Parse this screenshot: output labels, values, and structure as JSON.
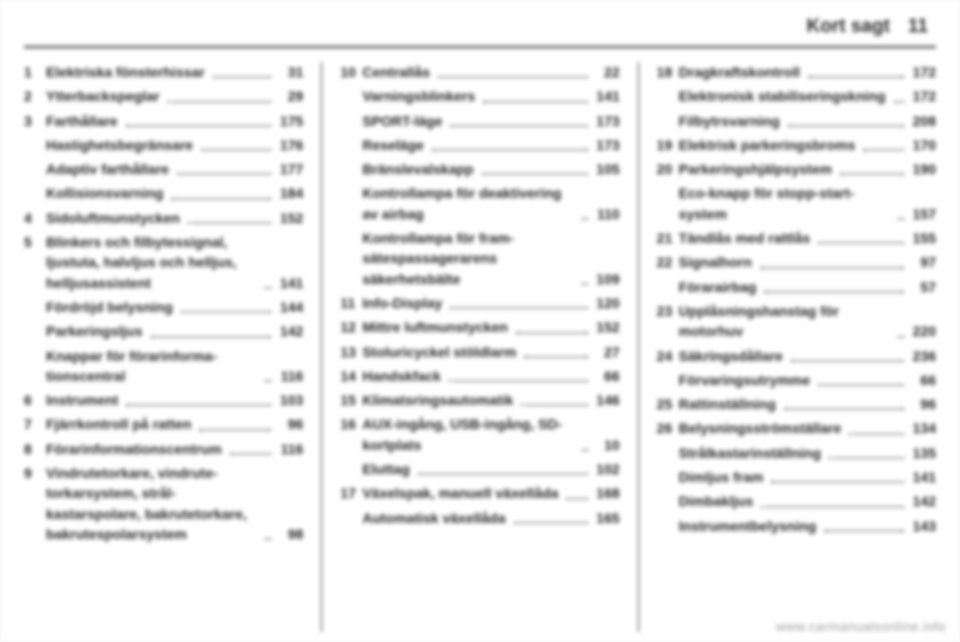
{
  "header": {
    "chapter": "Kort sagt",
    "page": "11"
  },
  "columns": [
    [
      {
        "idx": "1",
        "label": "Elektriska fönsterhissar",
        "pg": "31"
      },
      {
        "idx": "2",
        "label": "Ytterbackspeglar",
        "pg": "29"
      },
      {
        "idx": "3",
        "label": "Farthållare",
        "pg": "175"
      },
      {
        "idx": "",
        "label": "Hastighetsbegränsare",
        "pg": "176"
      },
      {
        "idx": "",
        "label": "Adaptiv farthållare",
        "pg": "177"
      },
      {
        "idx": "",
        "label": "Kollisionsvarning",
        "pg": "184"
      },
      {
        "idx": "4",
        "label": "Sidoluftmunstycken",
        "pg": "152"
      },
      {
        "idx": "5",
        "label": "Blinkers och filbytessignal, ljustuta, halvljus och helljus, helljusassistent",
        "pg": "141"
      },
      {
        "idx": "",
        "label": "Fördröjd belysning",
        "pg": "144"
      },
      {
        "idx": "",
        "label": "Parkeringsljus",
        "pg": "142"
      },
      {
        "idx": "",
        "label": "Knappar för förarinforma­tionscentral",
        "pg": "116"
      },
      {
        "idx": "6",
        "label": "Instrument",
        "pg": "103"
      },
      {
        "idx": "7",
        "label": "Fjärrkontroll på ratten",
        "pg": "96"
      },
      {
        "idx": "8",
        "label": "Förarinformationscentrum",
        "pg": "116"
      },
      {
        "idx": "9",
        "label": "Vindrutetorkare, vindrute­torkarsystem, strål­kastarspolare, bakrute­torkare, bakrute­spolarsystem",
        "pg": "98"
      }
    ],
    [
      {
        "idx": "10",
        "label": "Centrallås",
        "pg": "22"
      },
      {
        "idx": "",
        "label": "Varningsblinkers",
        "pg": "141"
      },
      {
        "idx": "",
        "label": "SPORT-läge",
        "pg": "173"
      },
      {
        "idx": "",
        "label": "Reseläge",
        "pg": "173"
      },
      {
        "idx": "",
        "label": "Bränslevalskapp",
        "pg": "105"
      },
      {
        "idx": "",
        "label": "Kontrollampa för deaktivering av airbag",
        "pg": "110"
      },
      {
        "idx": "",
        "label": "Kontrollampa för fram­sätespassagerarens säkerhetsbälte",
        "pg": "109"
      },
      {
        "idx": "11",
        "label": "Info-Display",
        "pg": "120"
      },
      {
        "idx": "12",
        "label": "Mittre luftmunstycken",
        "pg": "152"
      },
      {
        "idx": "13",
        "label": "Stoluricyckel stöldlarm",
        "pg": "27"
      },
      {
        "idx": "14",
        "label": "Handskfack",
        "pg": "66"
      },
      {
        "idx": "15",
        "label": "Klimatsringsautomatik",
        "pg": "146"
      },
      {
        "idx": "16",
        "label": "AUX-ingång, USB-ingång, SD-kortplats",
        "pg": "10"
      },
      {
        "idx": "",
        "label": "Eluttag",
        "pg": "102"
      },
      {
        "idx": "17",
        "label": "Växelspak, manuell växellåda",
        "pg": "168"
      },
      {
        "idx": "",
        "label": "Automatisk växellåda",
        "pg": "165"
      }
    ],
    [
      {
        "idx": "18",
        "label": "Dragkraftskontroll",
        "pg": "172"
      },
      {
        "idx": "",
        "label": "Elektronisk stabiliserings­kning",
        "pg": "172"
      },
      {
        "idx": "",
        "label": "Filbytrsvarning",
        "pg": "208"
      },
      {
        "idx": "19",
        "label": "Elektrisk parkeringsbroms",
        "pg": "170"
      },
      {
        "idx": "20",
        "label": "Parkeringshjälpsystem",
        "pg": "190"
      },
      {
        "idx": "",
        "label": "Eco-knapp för stopp-start-system",
        "pg": "157"
      },
      {
        "idx": "21",
        "label": "Tändlås med rattlås",
        "pg": "155"
      },
      {
        "idx": "22",
        "label": "Signalhorn",
        "pg": "97"
      },
      {
        "idx": "",
        "label": "Förarairbag",
        "pg": "57"
      },
      {
        "idx": "23",
        "label": "Upplåsningshanstag för motorhuv",
        "pg": "220"
      },
      {
        "idx": "24",
        "label": "Säkringsdållare",
        "pg": "236"
      },
      {
        "idx": "",
        "label": "Förvaringsutrymme",
        "pg": "66"
      },
      {
        "idx": "25",
        "label": "Rattinställning",
        "pg": "96"
      },
      {
        "idx": "26",
        "label": "Belysningsströmställare",
        "pg": "134"
      },
      {
        "idx": "",
        "label": "Strålkastarinställning",
        "pg": "135"
      },
      {
        "idx": "",
        "label": "Dimljus fram",
        "pg": "141"
      },
      {
        "idx": "",
        "label": "Dimbakljus",
        "pg": "142"
      },
      {
        "idx": "",
        "label": "Instrumentbelysning",
        "pg": "143"
      }
    ]
  ],
  "watermark": "www.carmanualsonline.info"
}
